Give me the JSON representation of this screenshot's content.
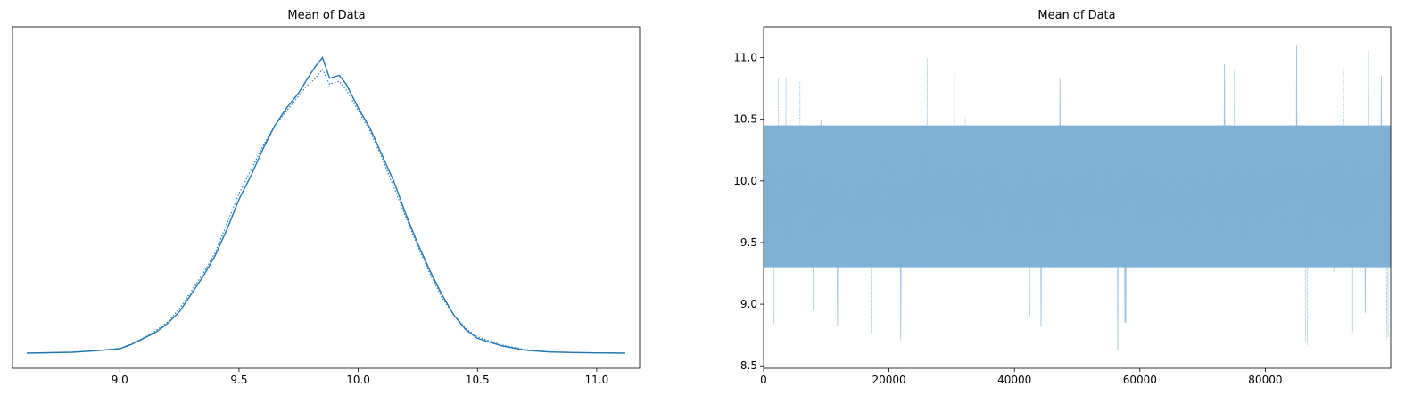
{
  "chart_data": [
    {
      "type": "line",
      "title": "Mean of Data",
      "xlabel": "",
      "ylabel": "",
      "xlim": [
        8.55,
        11.18
      ],
      "ylim": [
        0,
        1.05
      ],
      "x_ticks": [
        "9.0",
        "9.5",
        "10.0",
        "10.5",
        "11.0"
      ],
      "x_tick_values": [
        9.0,
        9.5,
        10.0,
        10.5,
        11.0
      ],
      "y_ticks_visible": false,
      "grid": false,
      "legend": "none",
      "series_color": "#1f77b4",
      "series": [
        {
          "line_style": "solid",
          "x": [
            8.61,
            8.8,
            8.9,
            9.0,
            9.05,
            9.1,
            9.15,
            9.2,
            9.25,
            9.3,
            9.35,
            9.4,
            9.45,
            9.5,
            9.55,
            9.6,
            9.65,
            9.7,
            9.75,
            9.78,
            9.82,
            9.85,
            9.88,
            9.92,
            9.95,
            10.0,
            10.05,
            10.1,
            10.15,
            10.2,
            10.25,
            10.3,
            10.35,
            10.4,
            10.45,
            10.5,
            10.6,
            10.7,
            10.8,
            10.9,
            11.0,
            11.12
          ],
          "y": [
            0.0,
            0.003,
            0.008,
            0.015,
            0.03,
            0.05,
            0.07,
            0.1,
            0.14,
            0.2,
            0.26,
            0.33,
            0.42,
            0.52,
            0.6,
            0.69,
            0.77,
            0.83,
            0.88,
            0.92,
            0.97,
            1.0,
            0.93,
            0.94,
            0.91,
            0.83,
            0.76,
            0.67,
            0.58,
            0.47,
            0.37,
            0.28,
            0.2,
            0.13,
            0.08,
            0.05,
            0.025,
            0.01,
            0.004,
            0.002,
            0.001,
            0.0
          ]
        },
        {
          "line_style": "dotted",
          "x": [
            8.61,
            8.8,
            8.9,
            9.0,
            9.05,
            9.1,
            9.15,
            9.2,
            9.25,
            9.3,
            9.35,
            9.4,
            9.45,
            9.5,
            9.55,
            9.6,
            9.65,
            9.7,
            9.75,
            9.78,
            9.82,
            9.85,
            9.88,
            9.92,
            9.95,
            10.0,
            10.05,
            10.1,
            10.15,
            10.2,
            10.25,
            10.3,
            10.35,
            10.4,
            10.45,
            10.5,
            10.6,
            10.7,
            10.8,
            10.9,
            11.0,
            11.12
          ],
          "y": [
            0.0,
            0.003,
            0.009,
            0.016,
            0.032,
            0.052,
            0.075,
            0.105,
            0.15,
            0.21,
            0.27,
            0.34,
            0.44,
            0.54,
            0.62,
            0.7,
            0.77,
            0.82,
            0.87,
            0.9,
            0.93,
            0.96,
            0.91,
            0.92,
            0.89,
            0.82,
            0.75,
            0.66,
            0.56,
            0.46,
            0.36,
            0.27,
            0.19,
            0.13,
            0.085,
            0.055,
            0.028,
            0.012,
            0.005,
            0.003,
            0.001,
            0.0
          ]
        }
      ]
    },
    {
      "type": "line",
      "title": "Mean of Data",
      "xlabel": "",
      "ylabel": "",
      "xlim": [
        0,
        100000
      ],
      "ylim": [
        8.48,
        11.25
      ],
      "x_ticks": [
        "0",
        "20000",
        "40000",
        "60000",
        "80000"
      ],
      "x_tick_values": [
        0,
        20000,
        40000,
        60000,
        80000
      ],
      "y_ticks": [
        "8.5",
        "9.0",
        "9.5",
        "10.0",
        "10.5",
        "11.0"
      ],
      "y_tick_values": [
        8.5,
        9.0,
        9.5,
        10.0,
        10.5,
        11.0
      ],
      "grid": false,
      "legend": "none",
      "series_color": "#7fb0d6",
      "n_draws": 100000,
      "band": {
        "center": 9.87,
        "dense_low": 9.3,
        "dense_high": 10.45
      },
      "extremes": {
        "min": 8.6,
        "max": 11.12
      }
    }
  ]
}
